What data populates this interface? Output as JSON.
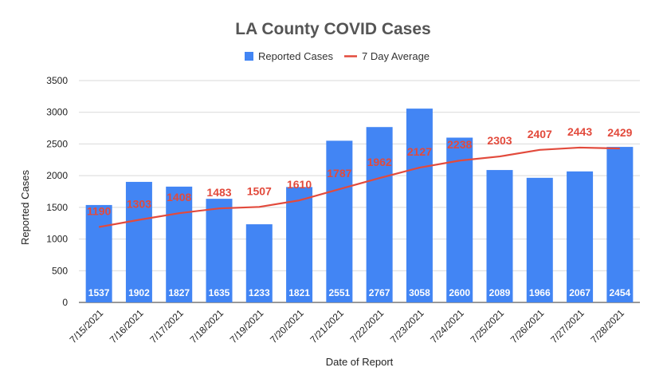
{
  "chart_data": {
    "type": "bar",
    "title": "LA County COVID Cases",
    "xlabel": "Date of Report",
    "ylabel": "Reported Cases",
    "ylim": [
      0,
      3500
    ],
    "yticks": [
      0,
      500,
      1000,
      1500,
      2000,
      2500,
      3000,
      3500
    ],
    "grid": true,
    "legend_position": "top-center",
    "categories": [
      "7/15/2021",
      "7/16/2021",
      "7/17/2021",
      "7/18/2021",
      "7/19/2021",
      "7/20/2021",
      "7/21/2021",
      "7/22/2021",
      "7/23/2021",
      "7/24/2021",
      "7/25/2021",
      "7/26/2021",
      "7/27/2021",
      "7/28/2021"
    ],
    "series": [
      {
        "name": "Reported Cases",
        "type": "bar",
        "color": "#4285f4",
        "values": [
          1537,
          1902,
          1827,
          1635,
          1233,
          1821,
          2551,
          2767,
          3058,
          2600,
          2089,
          1966,
          2067,
          2454
        ]
      },
      {
        "name": "7 Day Average",
        "type": "line",
        "color": "#e24a3c",
        "values": [
          1190,
          1303,
          1408,
          1483,
          1507,
          1610,
          1787,
          1962,
          2127,
          2238,
          2303,
          2407,
          2443,
          2429
        ]
      }
    ]
  }
}
